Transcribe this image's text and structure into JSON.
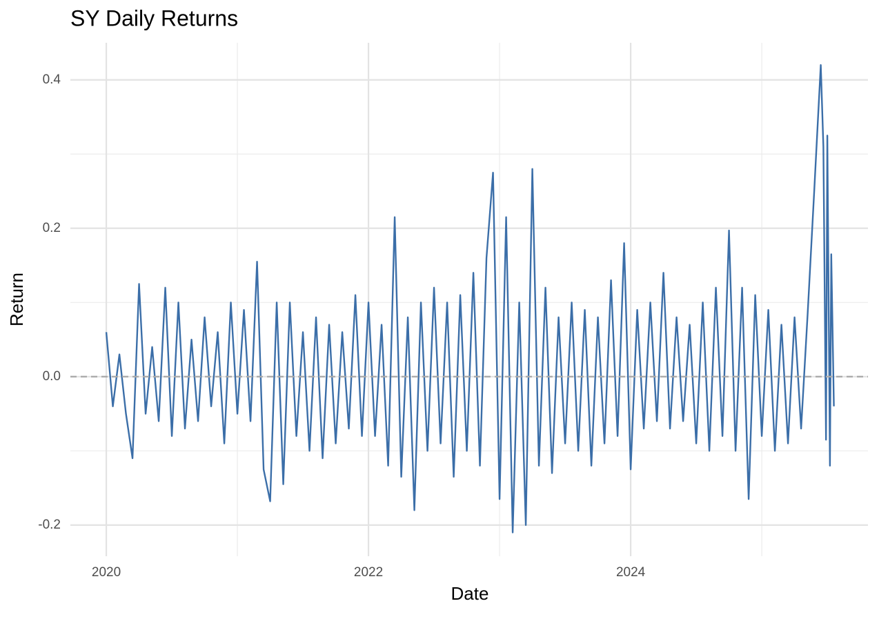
{
  "chart_data": {
    "type": "line",
    "title": "SY Daily Returns",
    "x_label": "Date",
    "y_label": "Return",
    "x": [
      2020.0,
      2020.05,
      2020.1,
      2020.15,
      2020.2,
      2020.25,
      2020.3,
      2020.35,
      2020.4,
      2020.45,
      2020.5,
      2020.55,
      2020.6,
      2020.65,
      2020.7,
      2020.75,
      2020.8,
      2020.85,
      2020.9,
      2020.95,
      2021.0,
      2021.05,
      2021.1,
      2021.15,
      2021.2,
      2021.25,
      2021.3,
      2021.35,
      2021.4,
      2021.45,
      2021.5,
      2021.55,
      2021.6,
      2021.65,
      2021.7,
      2021.75,
      2021.8,
      2021.85,
      2021.9,
      2021.95,
      2022.0,
      2022.05,
      2022.1,
      2022.15,
      2022.2,
      2022.25,
      2022.3,
      2022.35,
      2022.4,
      2022.45,
      2022.5,
      2022.55,
      2022.6,
      2022.65,
      2022.7,
      2022.75,
      2022.8,
      2022.85,
      2022.9,
      2022.95,
      2023.0,
      2023.05,
      2023.1,
      2023.15,
      2023.2,
      2023.25,
      2023.3,
      2023.35,
      2023.4,
      2023.45,
      2023.5,
      2023.55,
      2023.6,
      2023.65,
      2023.7,
      2023.75,
      2023.8,
      2023.85,
      2023.9,
      2023.95,
      2024.0,
      2024.05,
      2024.1,
      2024.15,
      2024.2,
      2024.25,
      2024.3,
      2024.35,
      2024.4,
      2024.45,
      2024.5,
      2024.55,
      2024.6,
      2024.65,
      2024.7,
      2024.75,
      2024.8,
      2024.85,
      2024.9,
      2024.95,
      2025.0,
      2025.05,
      2025.1,
      2025.15,
      2025.2,
      2025.25,
      2025.3,
      2025.35,
      2025.4,
      2025.45,
      2025.47,
      2025.49,
      2025.5,
      2025.52,
      2025.53,
      2025.55
    ],
    "series": [
      {
        "name": "SY",
        "color": "#3b6ea8",
        "values": [
          0.06,
          -0.04,
          0.03,
          -0.05,
          -0.11,
          0.125,
          -0.05,
          0.04,
          -0.06,
          0.12,
          -0.08,
          0.1,
          -0.07,
          0.05,
          -0.06,
          0.08,
          -0.04,
          0.06,
          -0.09,
          0.1,
          -0.05,
          0.09,
          -0.06,
          0.155,
          -0.125,
          -0.168,
          0.1,
          -0.145,
          0.1,
          -0.08,
          0.06,
          -0.1,
          0.08,
          -0.11,
          0.07,
          -0.09,
          0.06,
          -0.07,
          0.11,
          -0.08,
          0.1,
          -0.08,
          0.07,
          -0.12,
          0.215,
          -0.135,
          0.08,
          -0.18,
          0.1,
          -0.1,
          0.12,
          -0.09,
          0.1,
          -0.135,
          0.11,
          -0.1,
          0.14,
          -0.12,
          0.16,
          0.275,
          -0.165,
          0.215,
          -0.21,
          0.1,
          -0.2,
          0.28,
          -0.12,
          0.12,
          -0.13,
          0.08,
          -0.09,
          0.1,
          -0.1,
          0.09,
          -0.12,
          0.08,
          -0.09,
          0.13,
          -0.08,
          0.18,
          -0.125,
          0.09,
          -0.07,
          0.1,
          -0.06,
          0.14,
          -0.07,
          0.08,
          -0.06,
          0.07,
          -0.09,
          0.1,
          -0.1,
          0.12,
          -0.08,
          0.197,
          -0.1,
          0.12,
          -0.165,
          0.11,
          -0.08,
          0.09,
          -0.1,
          0.07,
          -0.09,
          0.08,
          -0.07,
          0.085,
          0.25,
          0.42,
          0.31,
          -0.085,
          0.325,
          -0.12,
          0.165,
          -0.04
        ]
      }
    ],
    "xlim": [
      2019.726,
      2025.81
    ],
    "xticks": [
      2020,
      2022,
      2024
    ],
    "xminor": [
      2021,
      2023,
      2025
    ],
    "ylim": [
      -0.242,
      0.45
    ],
    "yticks": [
      -0.2,
      {
        "value": 0,
        "label": "0.0"
      },
      0.2,
      0.4
    ],
    "yminor": [
      -0.1,
      0.1,
      0.3
    ],
    "hline": 0,
    "hline_color": "#aaaaaa",
    "grid": true
  }
}
